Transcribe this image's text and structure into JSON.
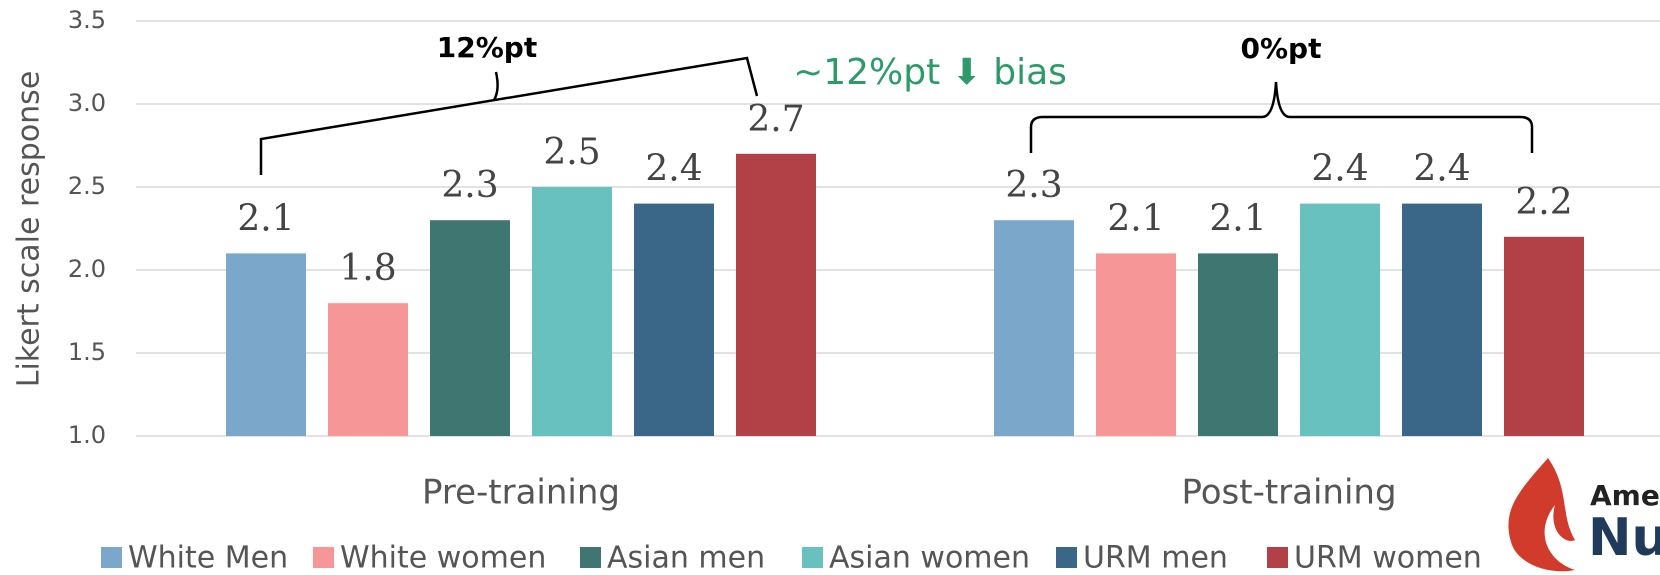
{
  "chart_data": {
    "type": "bar",
    "ylabel": "Likert scale response",
    "categories": [
      "Pre-training",
      "Post-training"
    ],
    "series": [
      {
        "name": "White Men",
        "color": "#7ba7ca",
        "values": [
          2.1,
          2.3
        ]
      },
      {
        "name": "White women",
        "color": "#f79696",
        "values": [
          1.8,
          2.1
        ]
      },
      {
        "name": "Asian men",
        "color": "#3f7672",
        "values": [
          2.3,
          2.1
        ]
      },
      {
        "name": "Asian women",
        "color": "#68c1be",
        "values": [
          2.5,
          2.4
        ]
      },
      {
        "name": "URM men",
        "color": "#3a6687",
        "values": [
          2.4,
          2.4
        ]
      },
      {
        "name": "URM women",
        "color": "#b24047",
        "values": [
          2.7,
          2.2
        ]
      }
    ],
    "ylim": [
      1.0,
      3.5
    ],
    "yticks": [
      {
        "value": 1.0,
        "label": "1.0"
      },
      {
        "value": 1.5,
        "label": "1.5"
      },
      {
        "value": 2.0,
        "label": "2.0"
      },
      {
        "value": 2.5,
        "label": "2.5"
      },
      {
        "value": 3.0,
        "label": "3.0"
      },
      {
        "value": 3.5,
        "label": "3.5"
      }
    ],
    "grid": true,
    "legend": "bottom",
    "annotations": [
      "12%pt",
      "~12%pt ⬇ bias",
      "0%pt"
    ],
    "logo": [
      "Ame",
      "Nu"
    ]
  }
}
